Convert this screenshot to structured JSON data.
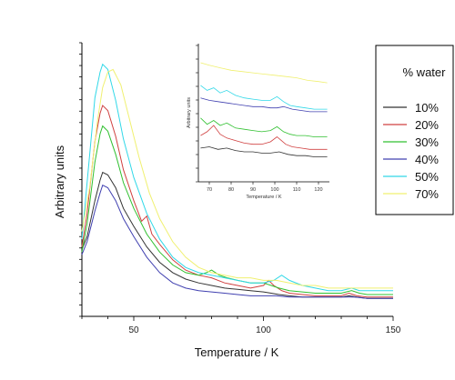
{
  "chart_data": {
    "type": "line",
    "xlabel": "Temperature / K",
    "ylabel": "Arbitrary units",
    "xlim": [
      30,
      150
    ],
    "xticks": [
      50,
      100,
      150
    ],
    "ylim": [
      0,
      1
    ],
    "grid": false,
    "legend": {
      "title": "% water",
      "placement": "right",
      "entries": [
        "10%",
        "20%",
        "30%",
        "40%",
        "50%",
        "70%"
      ]
    },
    "series": [
      {
        "name": "10%",
        "color": "#333333",
        "x": [
          30,
          32,
          35,
          37,
          38,
          40,
          43,
          46,
          50,
          55,
          60,
          65,
          70,
          75,
          80,
          85,
          90,
          95,
          100,
          103,
          106,
          110,
          115,
          120,
          125,
          130,
          133,
          136,
          140,
          145,
          150
        ],
        "y": [
          0.26,
          0.31,
          0.45,
          0.53,
          0.56,
          0.55,
          0.5,
          0.42,
          0.35,
          0.27,
          0.21,
          0.17,
          0.145,
          0.13,
          0.12,
          0.11,
          0.105,
          0.1,
          0.095,
          0.09,
          0.085,
          0.08,
          0.075,
          0.075,
          0.075,
          0.075,
          0.08,
          0.075,
          0.07,
          0.07,
          0.07
        ]
      },
      {
        "name": "20%",
        "color": "#d04040",
        "x": [
          30,
          32,
          35,
          37,
          38,
          40,
          43,
          46,
          50,
          53,
          55,
          57,
          60,
          65,
          70,
          75,
          80,
          85,
          90,
          95,
          100,
          102,
          104,
          107,
          110,
          115,
          120,
          125,
          130,
          133,
          136,
          140,
          145,
          150
        ],
        "y": [
          0.27,
          0.4,
          0.68,
          0.79,
          0.82,
          0.8,
          0.7,
          0.57,
          0.45,
          0.37,
          0.39,
          0.32,
          0.28,
          0.22,
          0.18,
          0.16,
          0.15,
          0.13,
          0.12,
          0.11,
          0.12,
          0.14,
          0.12,
          0.1,
          0.09,
          0.085,
          0.08,
          0.08,
          0.08,
          0.09,
          0.08,
          0.075,
          0.075,
          0.075
        ]
      },
      {
        "name": "30%",
        "color": "#30c030",
        "x": [
          30,
          32,
          35,
          37,
          38,
          40,
          43,
          46,
          50,
          55,
          60,
          65,
          70,
          75,
          78,
          80,
          83,
          86,
          90,
          95,
          100,
          103,
          106,
          110,
          115,
          120,
          125,
          130,
          134,
          137,
          140,
          145,
          150
        ],
        "y": [
          0.25,
          0.36,
          0.6,
          0.71,
          0.74,
          0.72,
          0.63,
          0.52,
          0.42,
          0.32,
          0.25,
          0.2,
          0.17,
          0.16,
          0.17,
          0.18,
          0.16,
          0.15,
          0.14,
          0.13,
          0.13,
          0.12,
          0.11,
          0.1,
          0.095,
          0.09,
          0.09,
          0.09,
          0.1,
          0.09,
          0.085,
          0.085,
          0.085
        ]
      },
      {
        "name": "40%",
        "color": "#4040b0",
        "x": [
          30,
          32,
          35,
          37,
          38,
          40,
          43,
          46,
          50,
          55,
          60,
          65,
          70,
          75,
          80,
          85,
          90,
          95,
          100,
          105,
          110,
          115,
          120,
          125,
          130,
          135,
          140,
          145,
          150
        ],
        "y": [
          0.24,
          0.29,
          0.41,
          0.48,
          0.51,
          0.5,
          0.45,
          0.38,
          0.31,
          0.23,
          0.17,
          0.13,
          0.11,
          0.1,
          0.095,
          0.09,
          0.085,
          0.08,
          0.08,
          0.08,
          0.075,
          0.075,
          0.075,
          0.075,
          0.075,
          0.075,
          0.07,
          0.07,
          0.07
        ]
      },
      {
        "name": "50%",
        "color": "#30d8e8",
        "x": [
          30,
          32,
          35,
          37,
          38,
          40,
          43,
          46,
          50,
          55,
          60,
          65,
          70,
          75,
          80,
          85,
          90,
          95,
          100,
          104,
          107,
          110,
          115,
          120,
          125,
          130,
          134,
          137,
          140,
          145,
          150
        ],
        "y": [
          0.3,
          0.52,
          0.85,
          0.95,
          0.98,
          0.96,
          0.84,
          0.69,
          0.54,
          0.4,
          0.3,
          0.23,
          0.19,
          0.17,
          0.16,
          0.15,
          0.14,
          0.13,
          0.13,
          0.14,
          0.16,
          0.14,
          0.12,
          0.11,
          0.1,
          0.1,
          0.11,
          0.1,
          0.1,
          0.1,
          0.1
        ]
      },
      {
        "name": "70%",
        "color": "#f0f070",
        "x": [
          30,
          33,
          36,
          38,
          40,
          42,
          45,
          48,
          52,
          56,
          60,
          65,
          70,
          75,
          80,
          85,
          90,
          95,
          100,
          105,
          110,
          115,
          120,
          125,
          130,
          135,
          140,
          145,
          150
        ],
        "y": [
          0.33,
          0.5,
          0.76,
          0.89,
          0.95,
          0.96,
          0.9,
          0.78,
          0.62,
          0.48,
          0.38,
          0.29,
          0.23,
          0.19,
          0.17,
          0.16,
          0.15,
          0.15,
          0.14,
          0.14,
          0.13,
          0.12,
          0.12,
          0.11,
          0.11,
          0.11,
          0.11,
          0.11,
          0.11
        ]
      }
    ],
    "inset": {
      "xlabel": "Temperature / K",
      "ylabel": "Arbitrary units",
      "xlim": [
        65,
        125
      ],
      "xticks": [
        70,
        80,
        90,
        100,
        110,
        120
      ],
      "xtick_labels": [
        "70",
        "80",
        "90",
        "100",
        "110",
        "120"
      ],
      "series": [
        {
          "name": "70%",
          "color": "#f0f070",
          "x": [
            66,
            70,
            75,
            80,
            85,
            90,
            95,
            100,
            105,
            110,
            115,
            120,
            124
          ],
          "y": [
            0.92,
            0.9,
            0.88,
            0.86,
            0.85,
            0.84,
            0.83,
            0.82,
            0.81,
            0.8,
            0.78,
            0.77,
            0.76
          ]
        },
        {
          "name": "50%",
          "color": "#30d8e8",
          "x": [
            66,
            69,
            72,
            75,
            78,
            82,
            86,
            90,
            94,
            98,
            101,
            104,
            107,
            110,
            114,
            118,
            122,
            124
          ],
          "y": [
            0.74,
            0.7,
            0.72,
            0.68,
            0.7,
            0.66,
            0.64,
            0.63,
            0.62,
            0.62,
            0.65,
            0.61,
            0.58,
            0.57,
            0.56,
            0.55,
            0.55,
            0.55
          ]
        },
        {
          "name": "40%",
          "color": "#4040b0",
          "x": [
            66,
            70,
            74,
            78,
            82,
            86,
            90,
            94,
            98,
            101,
            104,
            108,
            112,
            116,
            120,
            124
          ],
          "y": [
            0.64,
            0.62,
            0.61,
            0.6,
            0.59,
            0.58,
            0.57,
            0.57,
            0.56,
            0.56,
            0.57,
            0.55,
            0.54,
            0.53,
            0.53,
            0.53
          ]
        },
        {
          "name": "30%",
          "color": "#30c030",
          "x": [
            66,
            69,
            72,
            75,
            78,
            82,
            86,
            90,
            94,
            98,
            101,
            104,
            107,
            110,
            114,
            118,
            122,
            124
          ],
          "y": [
            0.48,
            0.43,
            0.46,
            0.42,
            0.44,
            0.4,
            0.39,
            0.38,
            0.37,
            0.38,
            0.41,
            0.37,
            0.35,
            0.34,
            0.34,
            0.33,
            0.33,
            0.33
          ]
        },
        {
          "name": "20%",
          "color": "#d04040",
          "x": [
            66,
            69,
            72,
            75,
            78,
            82,
            86,
            90,
            94,
            98,
            101,
            103,
            105,
            108,
            112,
            116,
            120,
            124
          ],
          "y": [
            0.34,
            0.37,
            0.42,
            0.35,
            0.32,
            0.3,
            0.28,
            0.27,
            0.27,
            0.29,
            0.33,
            0.3,
            0.27,
            0.25,
            0.24,
            0.23,
            0.23,
            0.23
          ]
        },
        {
          "name": "10%",
          "color": "#333333",
          "x": [
            66,
            70,
            74,
            78,
            82,
            86,
            90,
            94,
            98,
            102,
            106,
            110,
            114,
            118,
            122,
            124
          ],
          "y": [
            0.24,
            0.25,
            0.23,
            0.24,
            0.22,
            0.21,
            0.21,
            0.2,
            0.2,
            0.21,
            0.19,
            0.18,
            0.18,
            0.17,
            0.17,
            0.17
          ]
        }
      ]
    }
  }
}
